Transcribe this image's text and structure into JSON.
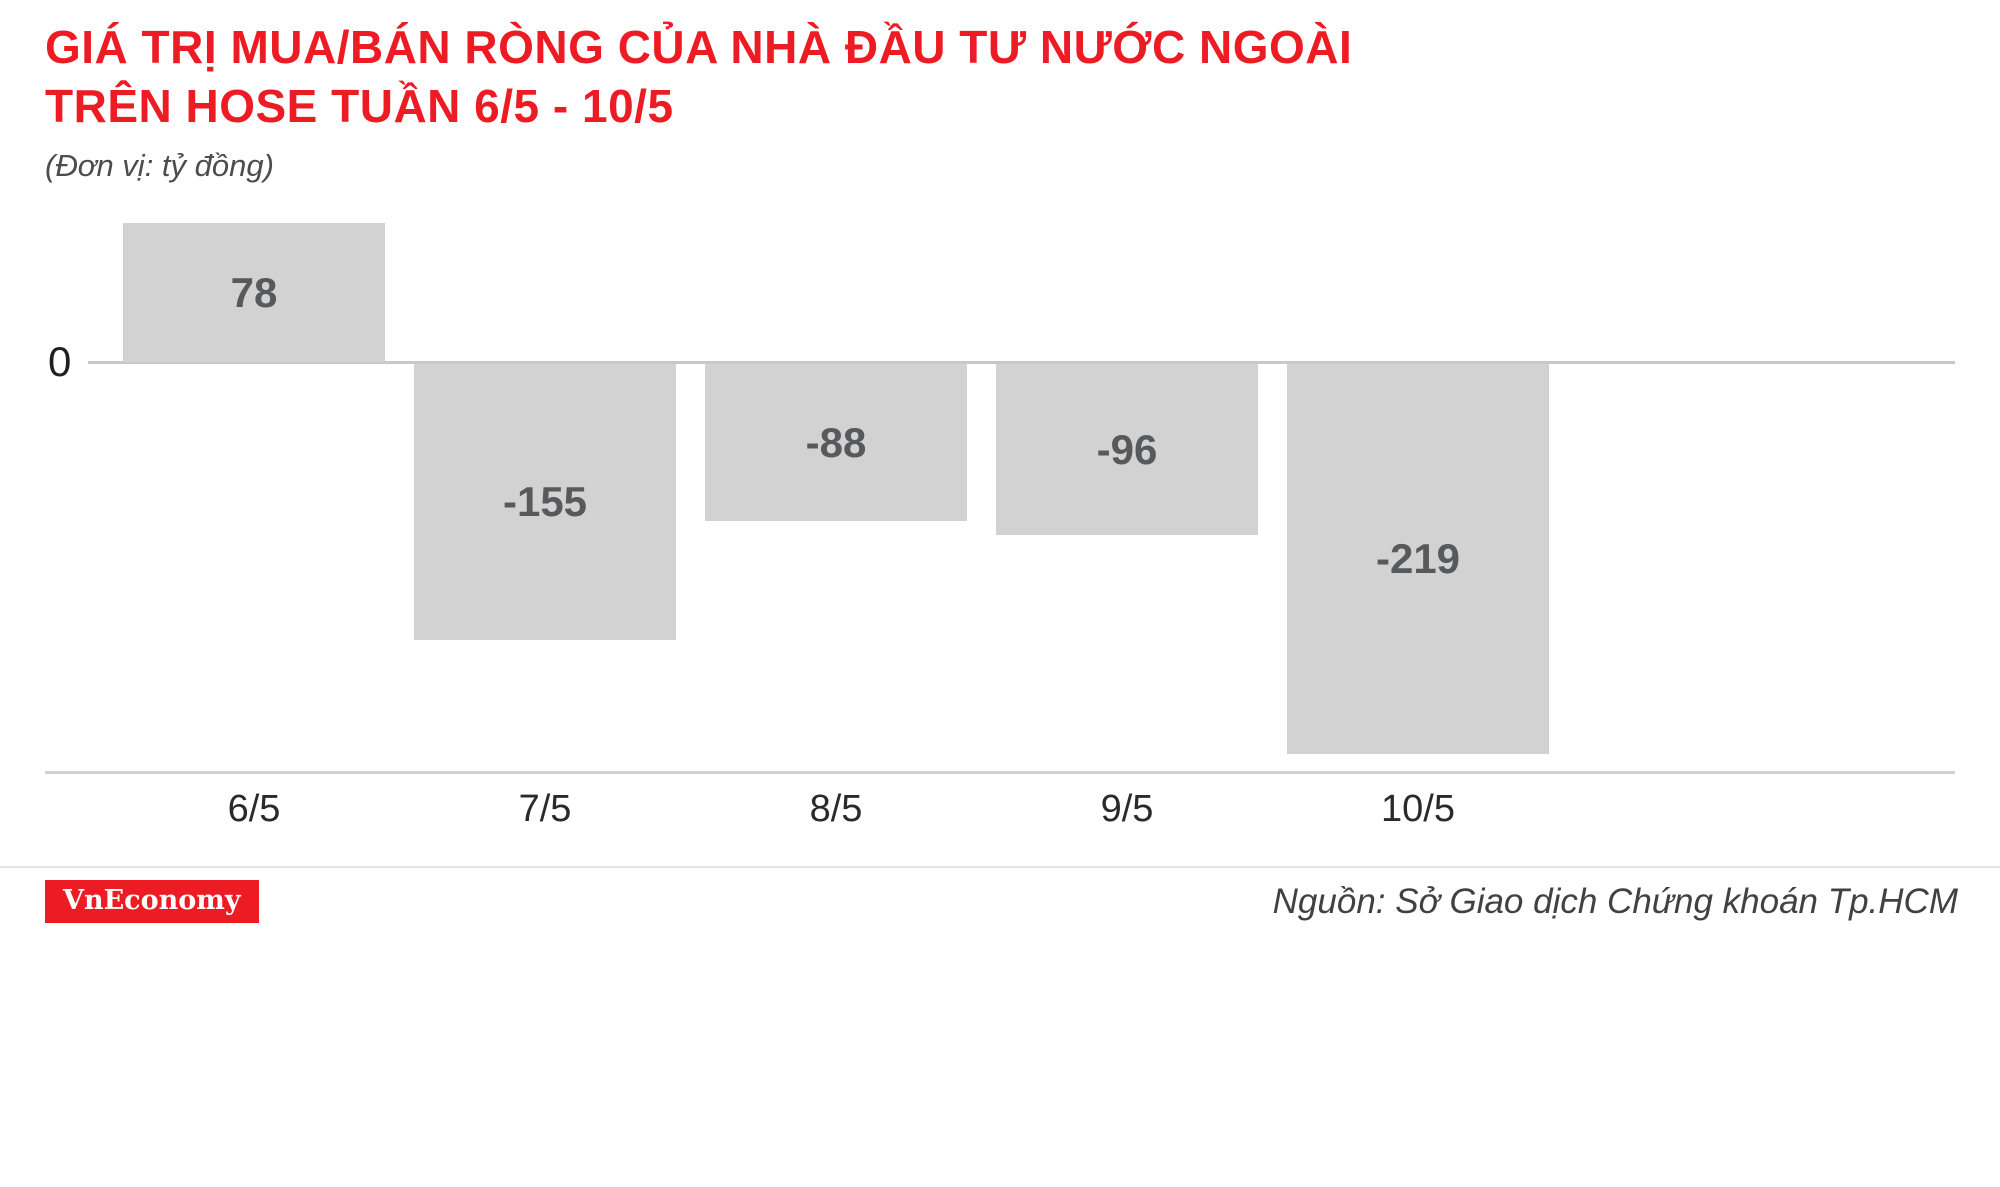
{
  "header": {
    "title": "GIÁ TRỊ MUA/BÁN RÒNG CỦA NHÀ ĐẦU TƯ NƯỚC NGOÀI\nTRÊN HOSE TUẦN 6/5 - 10/5",
    "unit_note": "(Đơn vị: tỷ đồng)"
  },
  "chart_data": {
    "type": "bar",
    "categories": [
      "6/5",
      "7/5",
      "8/5",
      "9/5",
      "10/5"
    ],
    "values": [
      78,
      -155,
      -88,
      -96,
      -219
    ],
    "title": "GIÁ TRỊ MUA/BÁN RÒNG CỦA NHÀ ĐẦU TƯ NƯỚC NGOÀI TRÊN HOSE TUẦN 6/5 - 10/5",
    "unit": "tỷ đồng",
    "zero_label": "0",
    "ylim": [
      -240,
      90
    ],
    "grid": false,
    "legend": "none",
    "bar_color": "#d2d2d3",
    "value_label_color": "#58595b"
  },
  "footer": {
    "logo_text": "VnEconomy",
    "source": "Nguồn: Sở Giao dịch Chứng khoán Tp.HCM"
  },
  "colors": {
    "accent_red": "#ed1c24",
    "bar_gray": "#d2d2d3",
    "text_dark": "#231f20",
    "value_gray": "#58595b"
  }
}
